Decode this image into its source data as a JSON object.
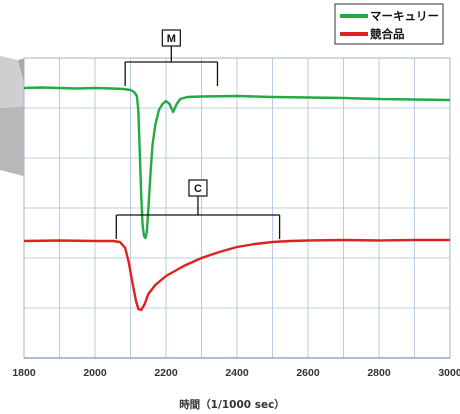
{
  "chart_data": {
    "type": "line",
    "xlabel": "時間（1/1000 sec）",
    "ylabel": "",
    "xlim": [
      1800,
      3000
    ],
    "xticks": [
      1800,
      2000,
      2200,
      2400,
      2600,
      2800,
      3000
    ],
    "grid": true,
    "legend_position": "top-right",
    "series": [
      {
        "name": "マーキュリー",
        "color": "#22aa44",
        "points": [
          [
            1800,
            88
          ],
          [
            1850,
            87.5
          ],
          [
            1900,
            88
          ],
          [
            1950,
            88.5
          ],
          [
            2000,
            88
          ],
          [
            2050,
            88.5
          ],
          [
            2080,
            89
          ],
          [
            2100,
            90
          ],
          [
            2110,
            92
          ],
          [
            2118,
            96
          ],
          [
            2122,
            110
          ],
          [
            2126,
            150
          ],
          [
            2130,
            195
          ],
          [
            2134,
            225
          ],
          [
            2138,
            236
          ],
          [
            2142,
            238
          ],
          [
            2146,
            232
          ],
          [
            2150,
            210
          ],
          [
            2156,
            175
          ],
          [
            2162,
            145
          ],
          [
            2170,
            125
          ],
          [
            2180,
            110
          ],
          [
            2190,
            104
          ],
          [
            2200,
            101
          ],
          [
            2210,
            104
          ],
          [
            2220,
            112
          ],
          [
            2230,
            104
          ],
          [
            2240,
            99
          ],
          [
            2260,
            97
          ],
          [
            2300,
            96.5
          ],
          [
            2400,
            96
          ],
          [
            2500,
            97
          ],
          [
            2600,
            97.5
          ],
          [
            2700,
            98
          ],
          [
            2800,
            99
          ],
          [
            2900,
            99.5
          ],
          [
            3000,
            100
          ]
        ]
      },
      {
        "name": "競合品",
        "color": "#dd2222",
        "points": [
          [
            1800,
            241
          ],
          [
            1900,
            240.5
          ],
          [
            2000,
            241
          ],
          [
            2050,
            241
          ],
          [
            2070,
            242
          ],
          [
            2085,
            248
          ],
          [
            2095,
            262
          ],
          [
            2105,
            282
          ],
          [
            2115,
            300
          ],
          [
            2122,
            309
          ],
          [
            2130,
            310
          ],
          [
            2140,
            304
          ],
          [
            2150,
            294
          ],
          [
            2170,
            285
          ],
          [
            2200,
            276
          ],
          [
            2250,
            266
          ],
          [
            2300,
            258
          ],
          [
            2350,
            252
          ],
          [
            2400,
            247
          ],
          [
            2450,
            244
          ],
          [
            2500,
            242
          ],
          [
            2550,
            241
          ],
          [
            2600,
            240.5
          ],
          [
            2700,
            240
          ],
          [
            2800,
            240.5
          ],
          [
            2900,
            240
          ],
          [
            3000,
            240
          ]
        ]
      }
    ],
    "annotations": [
      {
        "label": "M",
        "x_start": 2085,
        "x_end": 2345
      },
      {
        "label": "C",
        "x_start": 2060,
        "x_end": 2520
      }
    ]
  }
}
